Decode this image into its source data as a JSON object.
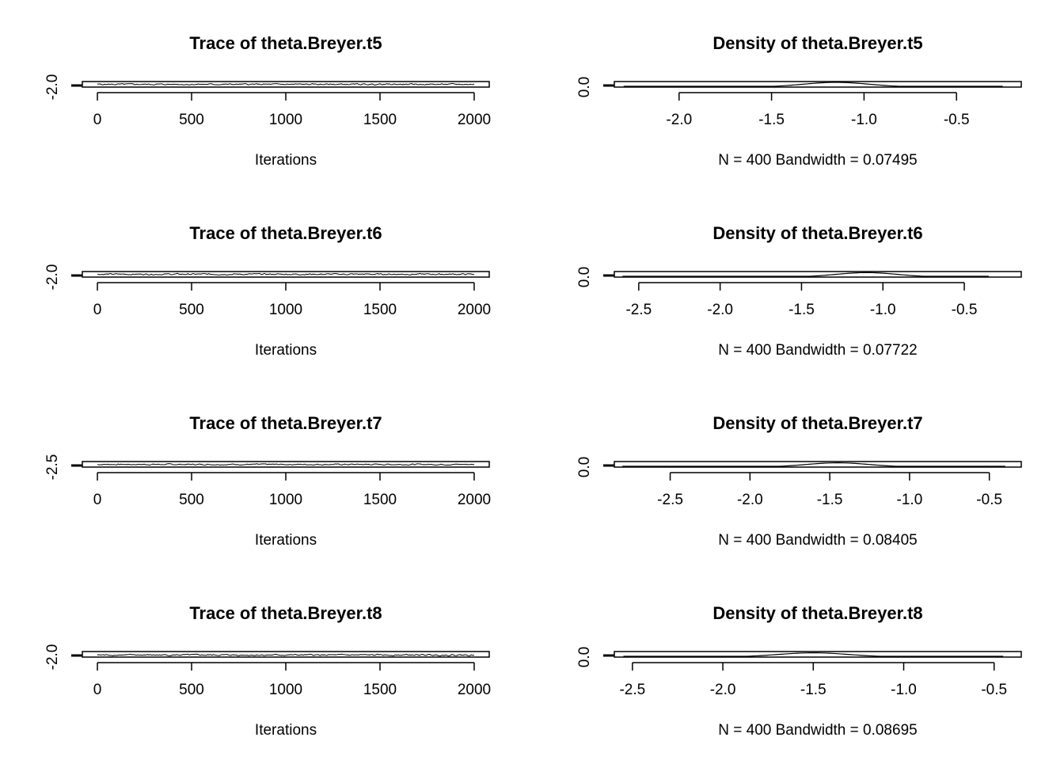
{
  "chart_data": [
    {
      "type": "line",
      "title": "Trace of theta.Breyer.t5",
      "xlabel": "Iterations",
      "ylabel": "",
      "xlim": [
        -80,
        2080
      ],
      "xticks": [
        "0",
        "500",
        "1000",
        "1500",
        "2000"
      ],
      "yticks": [
        "-2.0"
      ],
      "ylim": [
        -2.3,
        0.0
      ],
      "series_seed": 5,
      "series": [
        {
          "x_start": 0,
          "x_end": 2000,
          "n": 400,
          "mean": -1.15,
          "sd": 0.18
        }
      ]
    },
    {
      "type": "line",
      "title": "Density of theta.Breyer.t5",
      "xlabel": "N = 400   Bandwidth = 0.07495",
      "ylabel": "",
      "xlim": [
        -2.35,
        -0.15
      ],
      "xticks": [
        "-2.0",
        "-1.5",
        "-1.0",
        "-0.5"
      ],
      "yticks": [
        "0.0"
      ],
      "ylim": [
        0.0,
        2.6
      ],
      "series": [
        {
          "mean": -1.15,
          "sd": 0.18,
          "range": [
            -2.3,
            -0.25
          ]
        }
      ]
    },
    {
      "type": "line",
      "title": "Trace of theta.Breyer.t6",
      "xlabel": "Iterations",
      "ylabel": "",
      "xlim": [
        -80,
        2080
      ],
      "xticks": [
        "0",
        "500",
        "1000",
        "1500",
        "2000"
      ],
      "yticks": [
        "-2.0"
      ],
      "ylim": [
        -2.3,
        0.0
      ],
      "series_seed": 6,
      "series": [
        {
          "x_start": 0,
          "x_end": 2000,
          "n": 400,
          "mean": -1.1,
          "sd": 0.19
        }
      ]
    },
    {
      "type": "line",
      "title": "Density of theta.Breyer.t6",
      "xlabel": "N = 400   Bandwidth = 0.07722",
      "ylabel": "",
      "xlim": [
        -2.65,
        -0.15
      ],
      "xticks": [
        "-2.5",
        "-2.0",
        "-1.5",
        "-1.0",
        "-0.5"
      ],
      "yticks": [
        "0.0"
      ],
      "ylim": [
        0.0,
        2.6
      ],
      "series": [
        {
          "mean": -1.1,
          "sd": 0.19,
          "range": [
            -2.6,
            -0.35
          ]
        }
      ]
    },
    {
      "type": "line",
      "title": "Trace of theta.Breyer.t7",
      "xlabel": "Iterations",
      "ylabel": "",
      "xlim": [
        -80,
        2080
      ],
      "xticks": [
        "0",
        "500",
        "1000",
        "1500",
        "2000"
      ],
      "yticks": [
        "-2.5"
      ],
      "ylim": [
        -2.8,
        0.0
      ],
      "series_seed": 7,
      "series": [
        {
          "x_start": 0,
          "x_end": 2000,
          "n": 400,
          "mean": -1.45,
          "sd": 0.2
        }
      ]
    },
    {
      "type": "line",
      "title": "Density of theta.Breyer.t7",
      "xlabel": "N = 400   Bandwidth = 0.08405",
      "ylabel": "",
      "xlim": [
        -2.85,
        -0.3
      ],
      "xticks": [
        "-2.5",
        "-2.0",
        "-1.5",
        "-1.0",
        "-0.5"
      ],
      "yticks": [
        "0.0"
      ],
      "ylim": [
        0.0,
        2.6
      ],
      "series": [
        {
          "mean": -1.45,
          "sd": 0.2,
          "range": [
            -2.8,
            -0.4
          ]
        }
      ]
    },
    {
      "type": "line",
      "title": "Trace of theta.Breyer.t8",
      "xlabel": "Iterations",
      "ylabel": "",
      "xlim": [
        -80,
        2080
      ],
      "xticks": [
        "0",
        "500",
        "1000",
        "1500",
        "2000"
      ],
      "yticks": [
        "-2.0"
      ],
      "ylim": [
        -2.4,
        0.0
      ],
      "series_seed": 8,
      "series": [
        {
          "x_start": 0,
          "x_end": 2000,
          "n": 400,
          "mean": -1.5,
          "sd": 0.2
        }
      ]
    },
    {
      "type": "line",
      "title": "Density of theta.Breyer.t8",
      "xlabel": "N = 400   Bandwidth = 0.08695",
      "ylabel": "",
      "xlim": [
        -2.6,
        -0.35
      ],
      "xticks": [
        "-2.5",
        "-2.0",
        "-1.5",
        "-1.0",
        "-0.5"
      ],
      "yticks": [
        "0.0"
      ],
      "ylim": [
        0.0,
        2.6
      ],
      "series": [
        {
          "mean": -1.5,
          "sd": 0.2,
          "range": [
            -2.55,
            -0.45
          ]
        }
      ]
    }
  ]
}
